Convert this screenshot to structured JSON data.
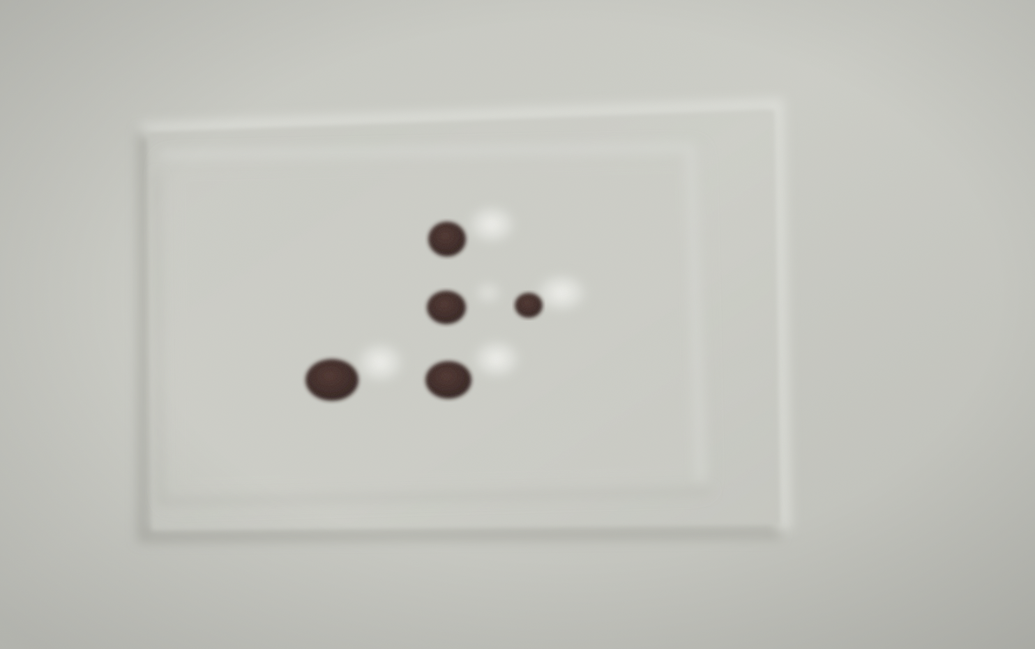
{
  "scene": {
    "subject": "embossed-braille-panel",
    "colors": {
      "paper_light": "#d2d3cc",
      "paper_mid": "#c4c5be",
      "paper_dark": "#b3b4ad",
      "panel_face": "#cbccc5",
      "emboss_shadow": "#9c9d96",
      "emboss_highlight": "#e6e7e1",
      "dot_fill": "#3a2622",
      "dot_glint": "#f2f2ee"
    },
    "braille_dots": [
      {
        "cell": 1,
        "dot": 1,
        "raised": true
      },
      {
        "cell": 1,
        "dot": 2,
        "raised": true
      },
      {
        "cell": 1,
        "dot": 3,
        "raised": true
      },
      {
        "cell": 1,
        "dot": 5,
        "raised": true
      },
      {
        "cell": 0,
        "dot": 6,
        "raised": true
      }
    ]
  }
}
